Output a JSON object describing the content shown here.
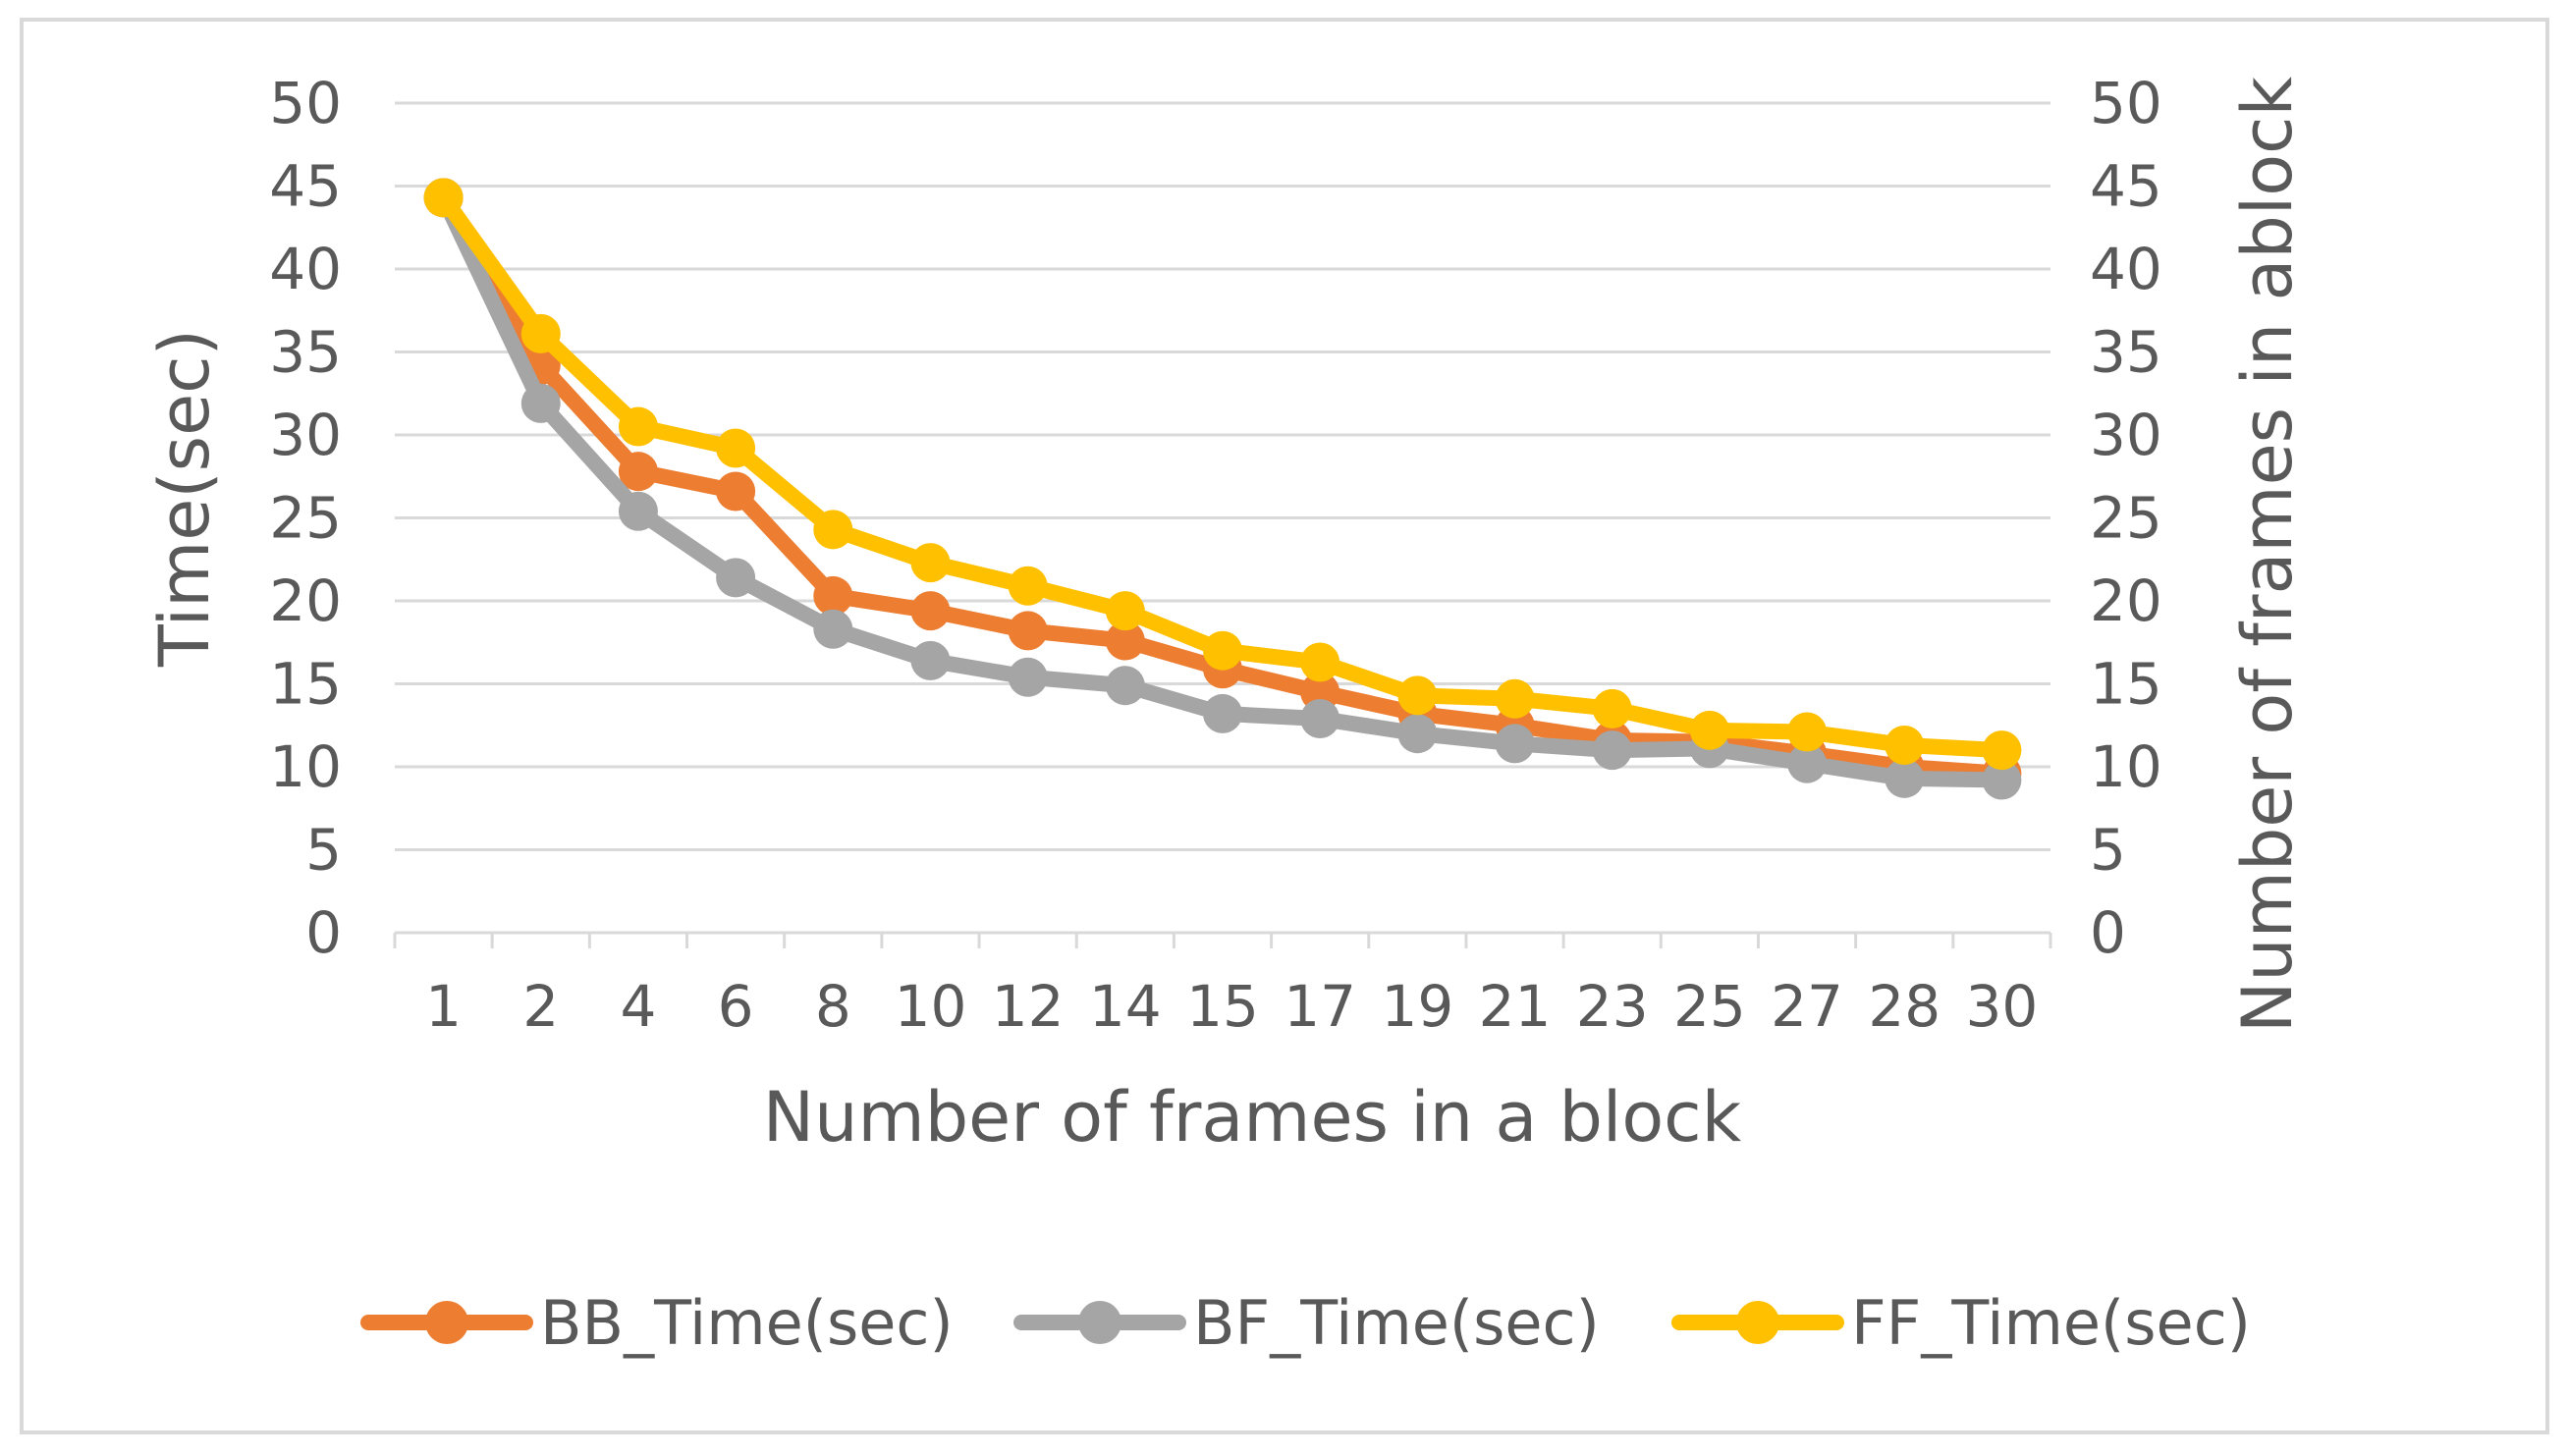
{
  "chart_data": {
    "type": "line",
    "title": "",
    "xlabel": "Number of frames in a block",
    "ylabel": "Time(sec)",
    "y2label": "Number of frames in ablock",
    "ylim": [
      0,
      50
    ],
    "y2lim": [
      0,
      50
    ],
    "ytick_step": 5,
    "grid": true,
    "legend": "bottom",
    "categories": [
      "1",
      "2",
      "4",
      "6",
      "8",
      "10",
      "12",
      "14",
      "15",
      "17",
      "19",
      "21",
      "23",
      "25",
      "27",
      "28",
      "30"
    ],
    "series": [
      {
        "name": "BB_Time(sec)",
        "color": "#ED7D31",
        "values": [
          44.3,
          34.2,
          27.8,
          26.6,
          20.3,
          19.4,
          18.2,
          17.6,
          15.9,
          14.5,
          13.2,
          12.5,
          11.6,
          11.5,
          10.8,
          10.0,
          9.6
        ]
      },
      {
        "name": "BF_Time(sec)",
        "color": "#A5A5A5",
        "values": [
          44.3,
          31.9,
          25.4,
          21.4,
          18.3,
          16.4,
          15.4,
          14.9,
          13.2,
          12.9,
          12.0,
          11.4,
          11.0,
          11.1,
          10.2,
          9.3,
          9.2
        ]
      },
      {
        "name": "FF_Time(sec)",
        "color": "#FFC000",
        "values": [
          44.3,
          36.1,
          30.5,
          29.2,
          24.3,
          22.3,
          20.9,
          19.4,
          17.0,
          16.3,
          14.3,
          14.1,
          13.5,
          12.2,
          12.1,
          11.3,
          11.0
        ]
      }
    ]
  }
}
